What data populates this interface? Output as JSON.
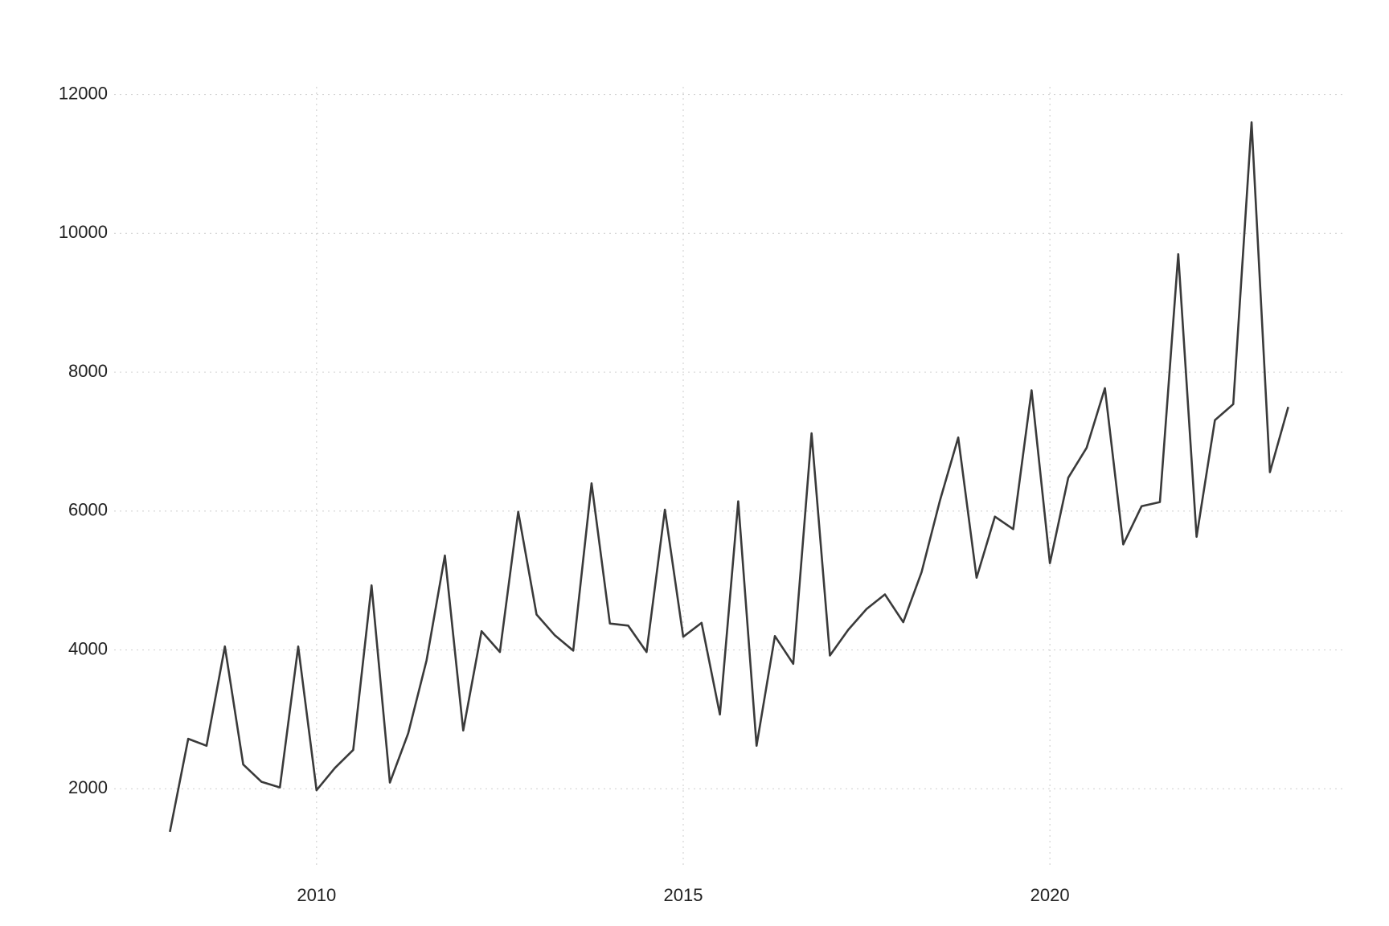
{
  "chart_data": {
    "type": "line",
    "x": [
      2008,
      2008.25,
      2008.5,
      2008.75,
      2009,
      2009.25,
      2009.5,
      2009.75,
      2010,
      2010.25,
      2010.5,
      2010.75,
      2011,
      2011.25,
      2011.5,
      2011.75,
      2012,
      2012.25,
      2012.5,
      2012.75,
      2013,
      2013.25,
      2013.5,
      2013.75,
      2014,
      2014.25,
      2014.5,
      2014.75,
      2015,
      2015.25,
      2015.5,
      2015.75,
      2016,
      2016.25,
      2016.5,
      2016.75,
      2017,
      2017.25,
      2017.5,
      2017.75,
      2018,
      2018.25,
      2018.5,
      2018.75,
      2019,
      2019.25,
      2019.5,
      2019.75,
      2020,
      2020.25,
      2020.5,
      2020.75,
      2021,
      2021.25,
      2021.5,
      2021.75,
      2022,
      2022.25,
      2022.5,
      2022.75,
      2023,
      2023.25
    ],
    "series": [
      {
        "color": "#3a3a3a",
        "values": [
          1380,
          2720,
          2620,
          4050,
          2350,
          2100,
          2020,
          4050,
          1980,
          2300,
          2560,
          4930,
          2090,
          2800,
          3850,
          5360,
          2840,
          4270,
          3970,
          5990,
          4510,
          4210,
          3990,
          6400,
          4380,
          4350,
          3970,
          6020,
          4190,
          4390,
          3070,
          6140,
          2620,
          4200,
          3800,
          7120,
          3920,
          4290,
          4590,
          4800,
          4400,
          5120,
          6150,
          7060,
          5040,
          5920,
          5740,
          7740,
          5250,
          6480,
          6910,
          7770,
          5520,
          6070,
          6130,
          9700,
          5630,
          7310,
          7540,
          11600,
          6560,
          7500
        ]
      }
    ],
    "xlim": [
      2007.24,
      2024.01
    ],
    "xticks": [
      2010,
      2015,
      2020
    ],
    "ylim": [
      869,
      12111
    ],
    "yticks": [
      2000,
      4000,
      6000,
      8000,
      10000,
      12000
    ],
    "grid": true
  }
}
